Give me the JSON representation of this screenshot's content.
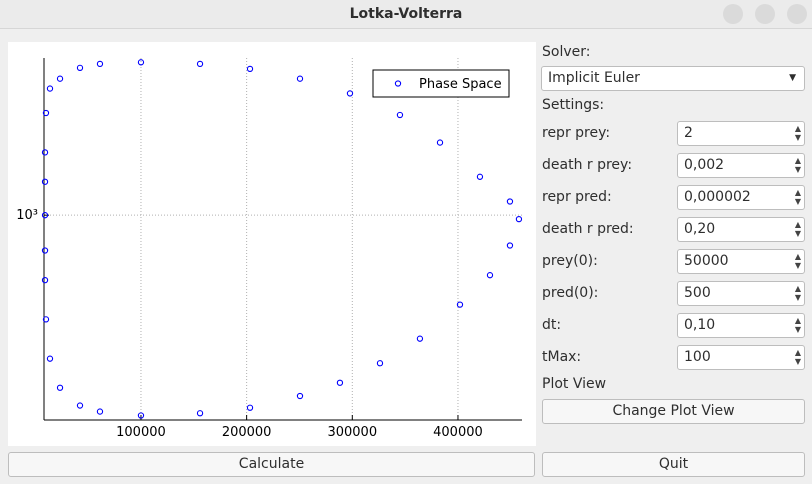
{
  "window": {
    "title": "Lotka-Volterra"
  },
  "solver": {
    "label": "Solver:",
    "selected": "Implicit Euler"
  },
  "settings": {
    "label": "Settings:",
    "fields": [
      {
        "label": "repr prey:",
        "value": "2"
      },
      {
        "label": "death r prey:",
        "value": "0,002"
      },
      {
        "label": "repr pred:",
        "value": "0,000002"
      },
      {
        "label": "death r pred:",
        "value": "0,20"
      },
      {
        "label": "prey(0):",
        "value": "50000"
      },
      {
        "label": "pred(0):",
        "value": "500"
      },
      {
        "label": "dt:",
        "value": "0,10"
      },
      {
        "label": "tMax:",
        "value": "100"
      }
    ]
  },
  "plot_view": {
    "label": "Plot View",
    "button": "Change Plot View"
  },
  "buttons": {
    "calculate": "Calculate",
    "quit": "Quit"
  },
  "chart_data": {
    "type": "scatter",
    "log_y": true,
    "grid": true,
    "legend": "upper right",
    "xlim": [
      8230,
      460600
    ],
    "ylim": [
      455,
      1830
    ],
    "xticks": [
      100000,
      200000,
      300000,
      400000
    ],
    "yticks": [
      {
        "value": 1000,
        "label": "10³"
      }
    ],
    "series": [
      {
        "name": "Phase Space",
        "color": "#0000ff",
        "x": [
          100000,
          155900,
          203200,
          250500,
          288300,
          326200,
          364000,
          401900,
          430300,
          449200,
          457700,
          449200,
          420800,
          383000,
          345100,
          297800,
          250500,
          203200,
          155900,
          100000,
          61200,
          42300,
          23400,
          13900,
          10100,
          9200,
          9200,
          9200,
          9200,
          9200,
          10100,
          13900,
          23400,
          42300,
          61200
        ],
        "values": [
          463,
          467,
          477,
          499,
          525,
          566,
          622,
          709,
          794,
          890,
          985,
          1054,
          1159,
          1322,
          1470,
          1597,
          1690,
          1755,
          1789,
          1800,
          1789,
          1762,
          1690,
          1627,
          1481,
          1273,
          1137,
          1000,
          873,
          779,
          670,
          576,
          515,
          481,
          470
        ]
      }
    ]
  }
}
